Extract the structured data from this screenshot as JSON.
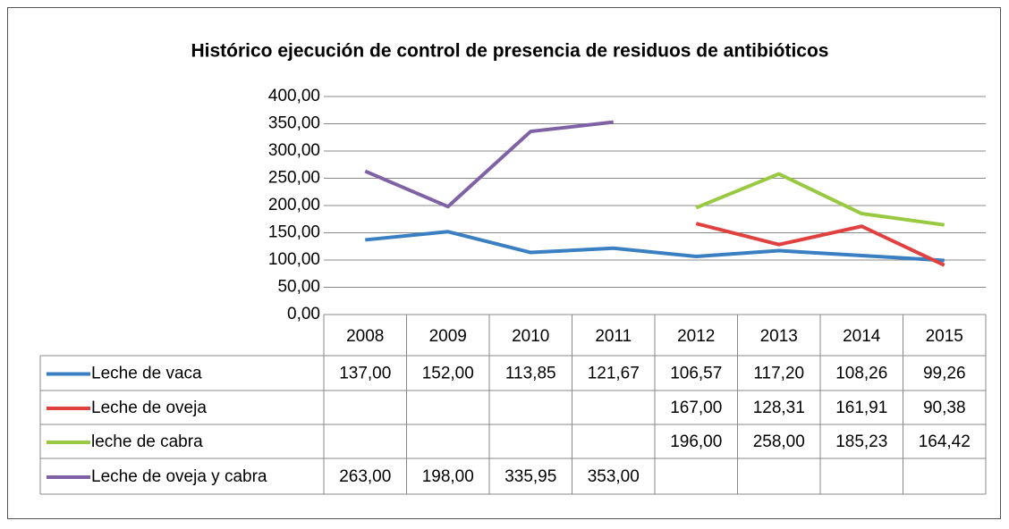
{
  "chart_data": {
    "type": "line",
    "title": "Histórico ejecución de control de presencia de residuos de antibióticos",
    "categories": [
      "2008",
      "2009",
      "2010",
      "2011",
      "2012",
      "2013",
      "2014",
      "2015"
    ],
    "series": [
      {
        "name": "Leche de vaca",
        "color": "#3a7fc1",
        "values": [
          137,
          152,
          113.85,
          121.67,
          106.57,
          117.2,
          108.26,
          99.26
        ],
        "value_labels": [
          "137,00",
          "152,00",
          "113,85",
          "121,67",
          "106,57",
          "117,20",
          "108,26",
          "99,26"
        ]
      },
      {
        "name": "Leche de oveja",
        "color": "#e0413f",
        "values": [
          null,
          null,
          null,
          null,
          167,
          128.31,
          161.91,
          90.38
        ],
        "value_labels": [
          null,
          null,
          null,
          null,
          "167,00",
          "128,31",
          "161,91",
          "90,38"
        ]
      },
      {
        "name": "leche de cabra",
        "color": "#99c941",
        "values": [
          null,
          null,
          null,
          null,
          196,
          258,
          185.23,
          164.42
        ],
        "value_labels": [
          null,
          null,
          null,
          null,
          "196,00",
          "258,00",
          "185,23",
          "164,42"
        ]
      },
      {
        "name": "Leche de oveja y cabra",
        "color": "#7f62a6",
        "values": [
          263,
          198,
          335.95,
          353,
          null,
          null,
          null,
          null
        ],
        "value_labels": [
          "263,00",
          "198,00",
          "335,95",
          "353,00",
          null,
          null,
          null,
          null
        ]
      }
    ],
    "ylim": [
      0,
      400
    ],
    "yticks": [
      {
        "value": 0,
        "label": "0,00"
      },
      {
        "value": 50,
        "label": "50,00"
      },
      {
        "value": 100,
        "label": "100,00"
      },
      {
        "value": 150,
        "label": "150,00"
      },
      {
        "value": 200,
        "label": "200,00"
      },
      {
        "value": 250,
        "label": "250,00"
      },
      {
        "value": 300,
        "label": "300,00"
      },
      {
        "value": 350,
        "label": "350,00"
      },
      {
        "value": 400,
        "label": "400,00"
      }
    ],
    "grid": true,
    "legend": "table"
  }
}
